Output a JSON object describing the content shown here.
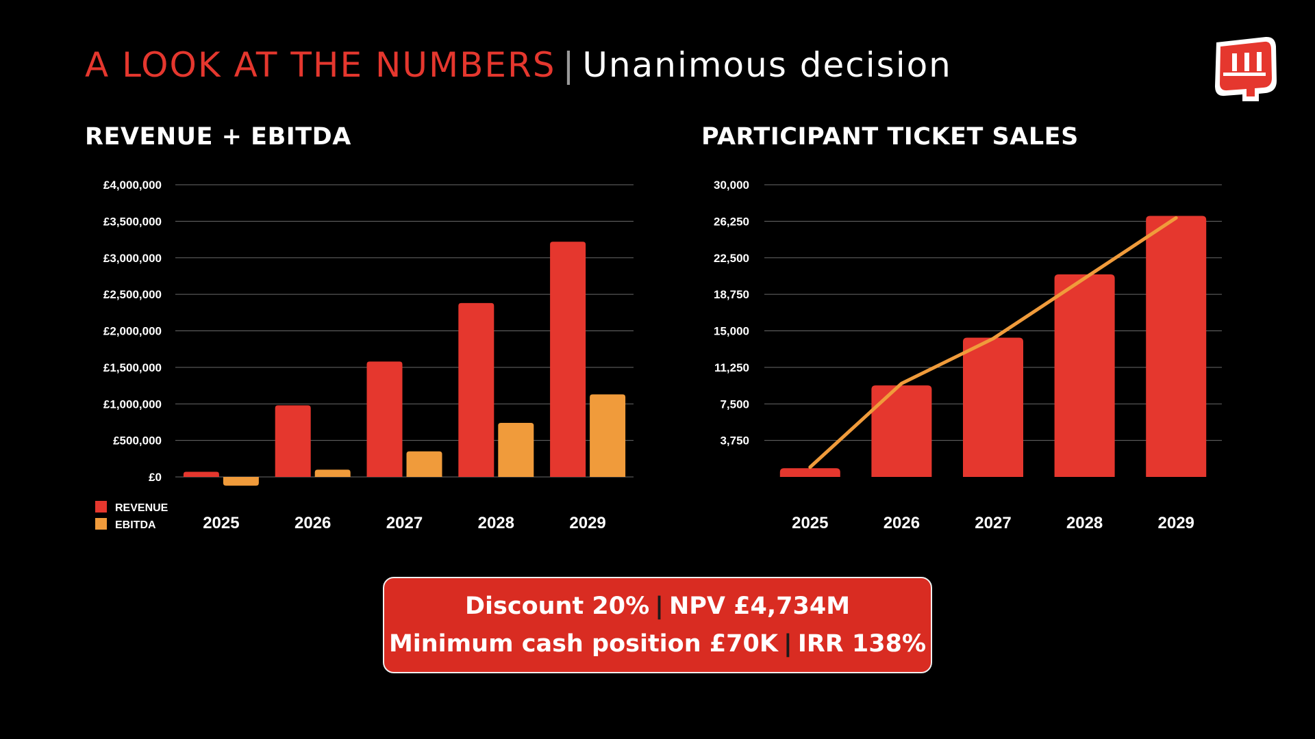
{
  "header": {
    "title_red": "A LOOK AT THE NUMBERS",
    "separator": "|",
    "title_white": "Unanimous decision"
  },
  "logo": {
    "icon": "fist-icon",
    "colors": [
      "#e5372e",
      "#ffffff"
    ]
  },
  "colors": {
    "revenue": "#e5372e",
    "ebitda": "#f09b3b",
    "tickets_bar": "#e5372e",
    "tickets_line": "#f09b3b",
    "grid": "#6b6b6b",
    "summary_bg": "#d92c22"
  },
  "chart_data": [
    {
      "type": "bar",
      "title": "REVENUE + EBITDA",
      "categories": [
        "2025",
        "2026",
        "2027",
        "2028",
        "2029"
      ],
      "series": [
        {
          "name": "REVENUE",
          "values": [
            70000,
            980000,
            1580000,
            2380000,
            3220000
          ]
        },
        {
          "name": "EBITDA",
          "values": [
            -120000,
            100000,
            350000,
            740000,
            1130000
          ]
        }
      ],
      "ylim": [
        0,
        4000000
      ],
      "yticks": [
        0,
        500000,
        1000000,
        1500000,
        2000000,
        2500000,
        3000000,
        3500000,
        4000000
      ],
      "ytick_labels": [
        "£0",
        "£500,000",
        "£1,000,000",
        "£1,500,000",
        "£2,000,000",
        "£2,500,000",
        "£3,000,000",
        "£3,500,000",
        "£4,000,000"
      ],
      "grid": true,
      "legend": "bottom-left"
    },
    {
      "type": "bar",
      "title": "PARTICIPANT TICKET SALES",
      "categories": [
        "2025",
        "2026",
        "2027",
        "2028",
        "2029"
      ],
      "values": [
        900,
        9400,
        14300,
        20800,
        26800
      ],
      "trend_line": [
        1000,
        9600,
        14200,
        20400,
        26600
      ],
      "ylim": [
        0,
        30000
      ],
      "yticks": [
        3750,
        7500,
        11250,
        15000,
        18750,
        22500,
        26250,
        30000
      ],
      "ytick_labels": [
        "3,750",
        "7,500",
        "11,250",
        "15,000",
        "18,750",
        "22,500",
        "26,250",
        "30,000"
      ],
      "grid": true
    }
  ],
  "summary": {
    "line1_a": "Discount 20%",
    "line1_b": "NPV £4,734M",
    "line2_a": "Minimum cash position £70K",
    "line2_b": "IRR 138%",
    "separator": "|"
  }
}
